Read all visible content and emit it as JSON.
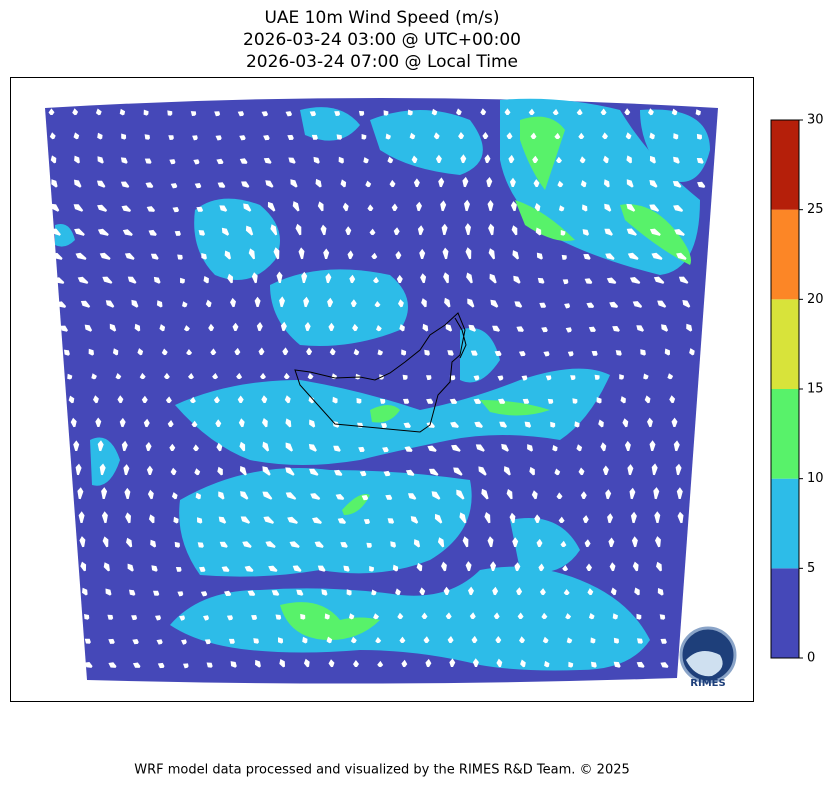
{
  "title": [
    "UAE 10m Wind Speed (m/s)",
    "2026-03-24 03:00 @ UTC+00:00",
    "2026-03-24 07:00 @ Local Time"
  ],
  "colorbar": {
    "lim": [
      0,
      30
    ],
    "ticks": [
      0,
      5,
      10,
      15,
      20,
      25,
      30
    ],
    "colors": [
      "#4548b8",
      "#2dbce8",
      "#58f26a",
      "#d8e33a",
      "#fc8626",
      "#b51f0a"
    ]
  },
  "logo": "RIMES",
  "footer": "WRF model data processed and visualized by the RIMES R&D Team. © 2025"
}
